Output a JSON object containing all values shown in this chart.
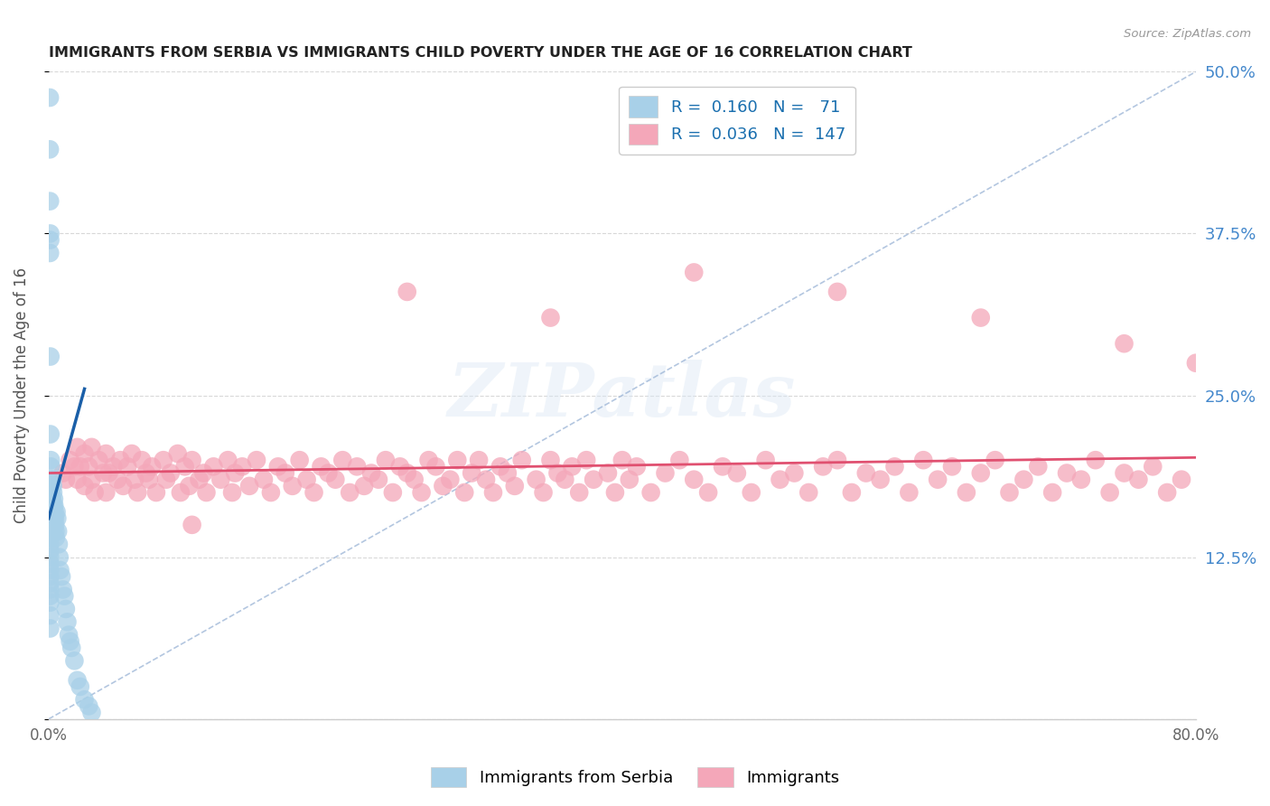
{
  "title": "IMMIGRANTS FROM SERBIA VS IMMIGRANTS CHILD POVERTY UNDER THE AGE OF 16 CORRELATION CHART",
  "source": "Source: ZipAtlas.com",
  "ylabel": "Child Poverty Under the Age of 16",
  "xmin": 0.0,
  "xmax": 0.8,
  "ymin": 0.0,
  "ymax": 0.5,
  "yticks": [
    0.0,
    0.125,
    0.25,
    0.375,
    0.5
  ],
  "ytick_labels_right": [
    "",
    "12.5%",
    "25.0%",
    "37.5%",
    "50.0%"
  ],
  "xtick_labels": [
    "0.0%",
    "",
    "",
    "",
    "80.0%"
  ],
  "legend_label1": "Immigrants from Serbia",
  "legend_label2": "Immigrants",
  "color_blue_scatter": "#a8d0e8",
  "color_pink_scatter": "#f4a7b9",
  "color_blue_line": "#1a5fa8",
  "color_pink_line": "#e05070",
  "color_diag_line": "#a0b8d8",
  "color_legend_text": "#1a6faf",
  "color_grid": "#d8d8d8",
  "color_axis": "#cccccc",
  "background_color": "#ffffff",
  "serbia_scatter_x": [
    0.0008,
    0.0008,
    0.0009,
    0.0009,
    0.001,
    0.001,
    0.001,
    0.001,
    0.001,
    0.001,
    0.001,
    0.001,
    0.001,
    0.001,
    0.001,
    0.001,
    0.001,
    0.001,
    0.0011,
    0.0011,
    0.0012,
    0.0012,
    0.0013,
    0.0013,
    0.0014,
    0.0015,
    0.0015,
    0.0016,
    0.0017,
    0.0018,
    0.0019,
    0.002,
    0.0021,
    0.0022,
    0.0023,
    0.0024,
    0.0025,
    0.0026,
    0.0027,
    0.0028,
    0.003,
    0.0032,
    0.0034,
    0.0036,
    0.0038,
    0.004,
    0.0042,
    0.0044,
    0.0046,
    0.0048,
    0.005,
    0.0055,
    0.006,
    0.0065,
    0.007,
    0.0075,
    0.008,
    0.009,
    0.01,
    0.011,
    0.012,
    0.013,
    0.014,
    0.015,
    0.016,
    0.018,
    0.02,
    0.022,
    0.025,
    0.028,
    0.03
  ],
  "serbia_scatter_y": [
    0.48,
    0.44,
    0.4,
    0.36,
    0.145,
    0.14,
    0.135,
    0.13,
    0.125,
    0.12,
    0.115,
    0.11,
    0.105,
    0.1,
    0.095,
    0.09,
    0.08,
    0.07,
    0.375,
    0.37,
    0.28,
    0.22,
    0.185,
    0.18,
    0.175,
    0.2,
    0.195,
    0.175,
    0.165,
    0.155,
    0.145,
    0.17,
    0.165,
    0.16,
    0.155,
    0.15,
    0.17,
    0.165,
    0.16,
    0.185,
    0.18,
    0.175,
    0.165,
    0.155,
    0.17,
    0.165,
    0.16,
    0.155,
    0.15,
    0.145,
    0.14,
    0.16,
    0.155,
    0.145,
    0.135,
    0.125,
    0.115,
    0.11,
    0.1,
    0.095,
    0.085,
    0.075,
    0.065,
    0.06,
    0.055,
    0.045,
    0.03,
    0.025,
    0.015,
    0.01,
    0.005
  ],
  "immig_scatter_x": [
    0.01,
    0.012,
    0.015,
    0.018,
    0.02,
    0.02,
    0.022,
    0.025,
    0.025,
    0.028,
    0.03,
    0.03,
    0.032,
    0.035,
    0.038,
    0.04,
    0.04,
    0.042,
    0.045,
    0.048,
    0.05,
    0.052,
    0.055,
    0.058,
    0.06,
    0.062,
    0.065,
    0.068,
    0.07,
    0.072,
    0.075,
    0.08,
    0.082,
    0.085,
    0.09,
    0.092,
    0.095,
    0.098,
    0.1,
    0.105,
    0.108,
    0.11,
    0.115,
    0.12,
    0.125,
    0.128,
    0.13,
    0.135,
    0.14,
    0.145,
    0.15,
    0.155,
    0.16,
    0.165,
    0.17,
    0.175,
    0.18,
    0.185,
    0.19,
    0.195,
    0.2,
    0.205,
    0.21,
    0.215,
    0.22,
    0.225,
    0.23,
    0.235,
    0.24,
    0.245,
    0.25,
    0.255,
    0.26,
    0.265,
    0.27,
    0.275,
    0.28,
    0.285,
    0.29,
    0.295,
    0.3,
    0.305,
    0.31,
    0.315,
    0.32,
    0.325,
    0.33,
    0.34,
    0.345,
    0.35,
    0.355,
    0.36,
    0.365,
    0.37,
    0.375,
    0.38,
    0.39,
    0.395,
    0.4,
    0.405,
    0.41,
    0.42,
    0.43,
    0.44,
    0.45,
    0.46,
    0.47,
    0.48,
    0.49,
    0.5,
    0.51,
    0.52,
    0.53,
    0.54,
    0.55,
    0.56,
    0.57,
    0.58,
    0.59,
    0.6,
    0.61,
    0.62,
    0.63,
    0.64,
    0.65,
    0.66,
    0.67,
    0.68,
    0.69,
    0.7,
    0.71,
    0.72,
    0.73,
    0.74,
    0.75,
    0.76,
    0.77,
    0.78,
    0.79,
    0.8,
    0.25,
    0.35,
    0.45,
    0.55,
    0.65,
    0.75,
    0.1
  ],
  "immig_scatter_y": [
    0.19,
    0.185,
    0.2,
    0.195,
    0.21,
    0.185,
    0.195,
    0.205,
    0.18,
    0.195,
    0.21,
    0.185,
    0.175,
    0.2,
    0.19,
    0.205,
    0.175,
    0.19,
    0.195,
    0.185,
    0.2,
    0.18,
    0.195,
    0.205,
    0.185,
    0.175,
    0.2,
    0.19,
    0.185,
    0.195,
    0.175,
    0.2,
    0.185,
    0.19,
    0.205,
    0.175,
    0.195,
    0.18,
    0.2,
    0.185,
    0.19,
    0.175,
    0.195,
    0.185,
    0.2,
    0.175,
    0.19,
    0.195,
    0.18,
    0.2,
    0.185,
    0.175,
    0.195,
    0.19,
    0.18,
    0.2,
    0.185,
    0.175,
    0.195,
    0.19,
    0.185,
    0.2,
    0.175,
    0.195,
    0.18,
    0.19,
    0.185,
    0.2,
    0.175,
    0.195,
    0.19,
    0.185,
    0.175,
    0.2,
    0.195,
    0.18,
    0.185,
    0.2,
    0.175,
    0.19,
    0.2,
    0.185,
    0.175,
    0.195,
    0.19,
    0.18,
    0.2,
    0.185,
    0.175,
    0.2,
    0.19,
    0.185,
    0.195,
    0.175,
    0.2,
    0.185,
    0.19,
    0.175,
    0.2,
    0.185,
    0.195,
    0.175,
    0.19,
    0.2,
    0.185,
    0.175,
    0.195,
    0.19,
    0.175,
    0.2,
    0.185,
    0.19,
    0.175,
    0.195,
    0.2,
    0.175,
    0.19,
    0.185,
    0.195,
    0.175,
    0.2,
    0.185,
    0.195,
    0.175,
    0.19,
    0.2,
    0.175,
    0.185,
    0.195,
    0.175,
    0.19,
    0.185,
    0.2,
    0.175,
    0.19,
    0.185,
    0.195,
    0.175,
    0.185,
    0.275,
    0.33,
    0.31,
    0.345,
    0.33,
    0.31,
    0.29,
    0.15
  ],
  "serbia_line_x": [
    0.0,
    0.025
  ],
  "serbia_line_y": [
    0.155,
    0.255
  ],
  "immig_line_x": [
    0.0,
    0.8
  ],
  "immig_line_y": [
    0.19,
    0.202
  ],
  "diag_line_x": [
    0.0,
    0.8
  ],
  "diag_line_y": [
    0.0,
    0.5
  ]
}
